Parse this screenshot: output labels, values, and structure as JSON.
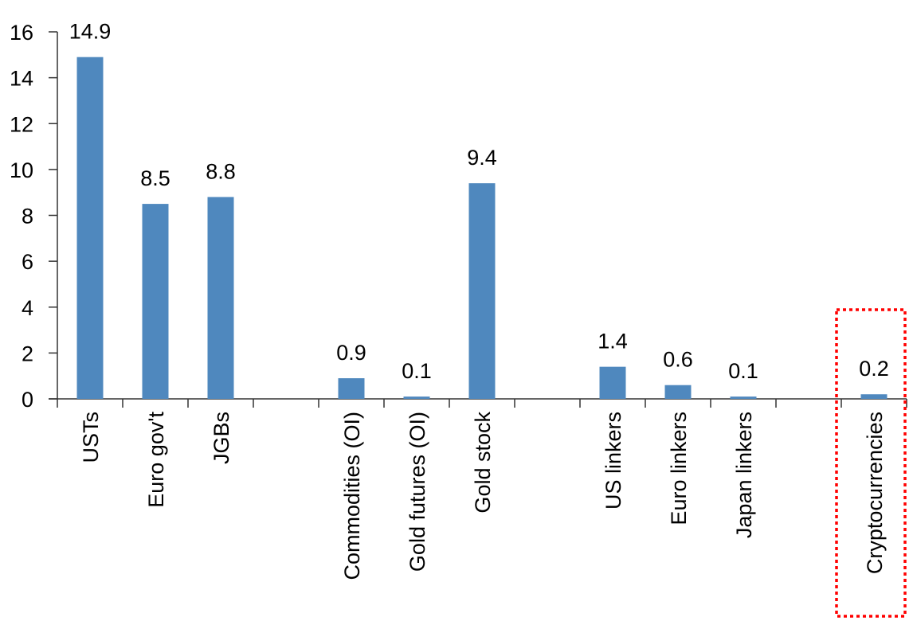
{
  "chart_data": {
    "type": "bar",
    "title": "",
    "xlabel": "",
    "ylabel": "",
    "ylim": [
      0,
      16
    ],
    "yticks": [
      0,
      2,
      4,
      6,
      8,
      10,
      12,
      14,
      16
    ],
    "grid": false,
    "categories": [
      "USTs",
      "Euro gov't",
      "JGBs",
      "",
      "Commodities (OI)",
      "Gold futures (OI)",
      "Gold stock",
      "",
      "US linkers",
      "Euro linkers",
      "Japan linkers",
      "",
      "Cryptocurrencies"
    ],
    "values": [
      14.9,
      8.5,
      8.8,
      null,
      0.9,
      0.1,
      9.4,
      null,
      1.4,
      0.6,
      0.1,
      null,
      0.2
    ],
    "data_labels": [
      "14.9",
      "8.5",
      "8.8",
      "",
      "0.9",
      "0.1",
      "9.4",
      "",
      "1.4",
      "0.6",
      "0.1",
      "",
      "0.2"
    ],
    "bar_color": "#4f88be",
    "highlight": {
      "category": "Cryptocurrencies",
      "style": "red dotted box",
      "color": "#ff0000"
    }
  }
}
